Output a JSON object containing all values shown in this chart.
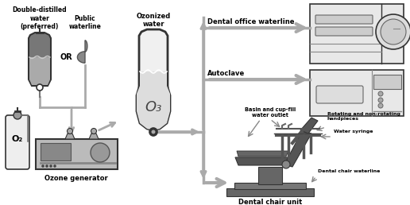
{
  "bg_color": "#ffffff",
  "dark": "#333333",
  "med": "#888888",
  "light": "#cccccc",
  "dark_fill": "#666666",
  "med_fill": "#999999",
  "light_fill": "#e0e0e0",
  "bag_fill": "#777777",
  "oz_fill": "#bbbbbb",
  "tc": "#000000",
  "arrow_gray": "#aaaaaa",
  "labels": {
    "double_distilled": "Double-distilled\nwater\n(preferred)",
    "public_waterline": "Public\nwaterline",
    "or": "OR",
    "ozonized_water": "Ozonized\nwater",
    "o3": "O₃",
    "ozone_generator": "Ozone generator",
    "dental_office": "Dental office waterline",
    "autoclave": "Autoclave",
    "dental_chair_unit": "Dental chair unit",
    "basin": "Basin and cup-fill\nwater outlet",
    "rotating": "Rotating and non-rotating\nhandpieces",
    "water_syringe": "Water syringe",
    "dental_chair_waterline": "Dental chair waterline"
  }
}
